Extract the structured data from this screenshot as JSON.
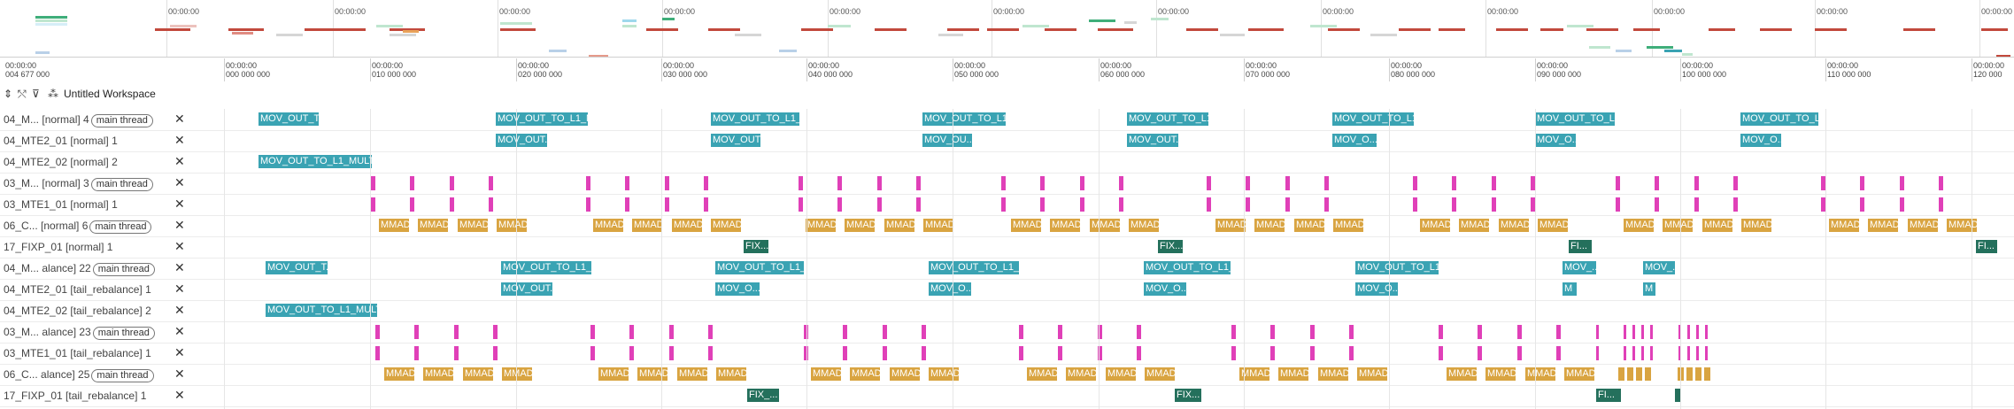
{
  "overview": {
    "tick_label": "00:00:00",
    "ticks": [
      188,
      376,
      562,
      748,
      935,
      1120,
      1306,
      1492,
      1678,
      1866,
      2050,
      2236
    ]
  },
  "ruler": {
    "start_time": "00:00:00\n004 677 000",
    "ticks": [
      {
        "label": "00:00:00\n000 000 000",
        "x": 253
      },
      {
        "label": "00:00:00\n010 000 000",
        "x": 418
      },
      {
        "label": "00:00:00\n020 000 000",
        "x": 583
      },
      {
        "label": "00:00:00\n030 000 000",
        "x": 747
      },
      {
        "label": "00:00:00\n040 000 000",
        "x": 911
      },
      {
        "label": "00:00:00\n050 000 000",
        "x": 1076
      },
      {
        "label": "00:00:00\n060 000 000",
        "x": 1241
      },
      {
        "label": "00:00:00\n070 000 000",
        "x": 1405
      },
      {
        "label": "00:00:00\n080 000 000",
        "x": 1569
      },
      {
        "label": "00:00:00\n090 000 000",
        "x": 1734
      },
      {
        "label": "00:00:00\n100 000 000",
        "x": 1898
      },
      {
        "label": "00:00:00\n110 000 000",
        "x": 2062
      },
      {
        "label": "00:00:00\n120 000",
        "x": 2227
      }
    ]
  },
  "toolbar": {
    "workspace_label": "Untitled Workspace",
    "icons": [
      "sort-icon",
      "pin-icon",
      "filter-icon",
      "workspace-icon"
    ]
  },
  "tracks": [
    {
      "label": "04_M... [normal] 4",
      "tag": "main thread"
    },
    {
      "label": "04_MTE2_01 [normal] 1",
      "tag": ""
    },
    {
      "label": "04_MTE2_02 [normal] 2",
      "tag": ""
    },
    {
      "label": "03_M... [normal] 3",
      "tag": "main thread"
    },
    {
      "label": "03_MTE1_01 [normal] 1",
      "tag": ""
    },
    {
      "label": "06_C... [normal] 6",
      "tag": "main thread"
    },
    {
      "label": "17_FIXP_01 [normal] 1",
      "tag": ""
    },
    {
      "label": "04_M... alance] 22",
      "tag": "main thread"
    },
    {
      "label": "04_MTE2_01 [tail_rebalance] 1",
      "tag": ""
    },
    {
      "label": "04_MTE2_02 [tail_rebalance] 2",
      "tag": ""
    },
    {
      "label": "03_M... alance] 23",
      "tag": "main thread"
    },
    {
      "label": "03_MTE1_01 [tail_rebalance] 1",
      "tag": ""
    },
    {
      "label": "06_C... alance] 25",
      "tag": "main thread"
    },
    {
      "label": "17_FIXP_01 [tail_rebalance] 1",
      "tag": ""
    }
  ],
  "events": {
    "r0": [
      "MOV_OUT_T...",
      "MOV_OUT_TO_L1_M...",
      "MOV_OUT_TO_L1_...",
      "MOV_OUT_TO_L1...",
      "MOV_OUT_TO_L1...",
      "MOV_OUT_TO_L1...",
      "MOV_OUT_TO_L1...",
      "MOV_OUT_TO_L1..."
    ],
    "r1": [
      "MOV_OUT...",
      "MOV_OUT...",
      "MOV_OU...",
      "MOV_OUT...",
      "MOV_O...",
      "MOV_O...",
      "MOV_O..."
    ],
    "r2": [
      "MOV_OUT_TO_L1_MULTI..."
    ],
    "mmad": "MMAD",
    "r6": [
      "FIX...",
      "FIX...",
      "FI...",
      "FI..."
    ],
    "r7": [
      "MOV_OUT_T...",
      "MOV_OUT_TO_L1_M...",
      "MOV_OUT_TO_L1_...",
      "MOV_OUT_TO_L1_M...",
      "MOV_OUT_TO_L1_...",
      "MOV_OUT_TO_L1_...",
      "MOV_...",
      "MOV_..."
    ],
    "r8": [
      "MOV_OUT...",
      "MOV_O...",
      "MOV_O...",
      "MOV_O...",
      "MOV_O...",
      "M",
      "M"
    ],
    "r9": [
      "MOV_OUT_TO_L1_MULTI..."
    ],
    "r13": [
      "FIX_...",
      "FIX...",
      "FI..."
    ]
  },
  "colors": {
    "mov": "#3aa3b3",
    "mmad": "#d9a441",
    "fix": "#24705c",
    "pink": "#e040b8"
  }
}
